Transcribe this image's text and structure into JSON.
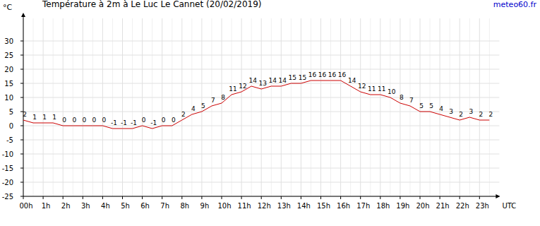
{
  "chart_data": {
    "type": "line",
    "title": "Température à 2m à Le Luc Le Cannet (20/02/2019)",
    "source": "meteo60.fr",
    "y_label": "°C",
    "x_label": "UTC",
    "x": [
      0,
      0.5,
      1,
      1.5,
      2,
      2.5,
      3,
      3.5,
      4,
      4.5,
      5,
      5.5,
      6,
      6.5,
      7,
      7.5,
      8,
      8.5,
      9,
      9.5,
      10,
      10.5,
      11,
      11.5,
      12,
      12.5,
      13,
      13.5,
      14,
      14.5,
      15,
      15.5,
      16,
      16.5,
      17,
      17.5,
      18,
      18.5,
      19,
      19.5,
      20,
      20.5,
      21,
      21.5,
      22,
      22.5,
      23,
      23.5
    ],
    "series": [
      {
        "name": "Température",
        "color": "#cc0000",
        "values": [
          2,
          1,
          1,
          1,
          0,
          0,
          0,
          0,
          0,
          -1,
          -1,
          -1,
          0,
          -1,
          0,
          0,
          2,
          4,
          5,
          7,
          8,
          11,
          12,
          14,
          13,
          14,
          14,
          15,
          15,
          16,
          16,
          16,
          16,
          14,
          12,
          11,
          11,
          10,
          8,
          7,
          5,
          5,
          4,
          3,
          2,
          3,
          2,
          2
        ]
      }
    ],
    "xlim": [
      0,
      24
    ],
    "xticks": [
      {
        "value": 0,
        "label": "00h"
      },
      {
        "value": 1,
        "label": "1h"
      },
      {
        "value": 2,
        "label": "2h"
      },
      {
        "value": 3,
        "label": "3h"
      },
      {
        "value": 4,
        "label": "4h"
      },
      {
        "value": 5,
        "label": "5h"
      },
      {
        "value": 6,
        "label": "6h"
      },
      {
        "value": 7,
        "label": "7h"
      },
      {
        "value": 8,
        "label": "8h"
      },
      {
        "value": 9,
        "label": "9h"
      },
      {
        "value": 10,
        "label": "10h"
      },
      {
        "value": 11,
        "label": "11h"
      },
      {
        "value": 12,
        "label": "12h"
      },
      {
        "value": 13,
        "label": "13h"
      },
      {
        "value": 14,
        "label": "14h"
      },
      {
        "value": 15,
        "label": "15h"
      },
      {
        "value": 16,
        "label": "16h"
      },
      {
        "value": 17,
        "label": "17h"
      },
      {
        "value": 18,
        "label": "18h"
      },
      {
        "value": 19,
        "label": "19h"
      },
      {
        "value": 20,
        "label": "20h"
      },
      {
        "value": 21,
        "label": "21h"
      },
      {
        "value": 22,
        "label": "22h"
      },
      {
        "value": 23,
        "label": "23h"
      }
    ],
    "ylim": [
      -25,
      38
    ],
    "yticks": [
      -25,
      -20,
      -15,
      -10,
      -5,
      0,
      5,
      10,
      15,
      20,
      25,
      30
    ],
    "grid": true,
    "data_labels": true
  }
}
